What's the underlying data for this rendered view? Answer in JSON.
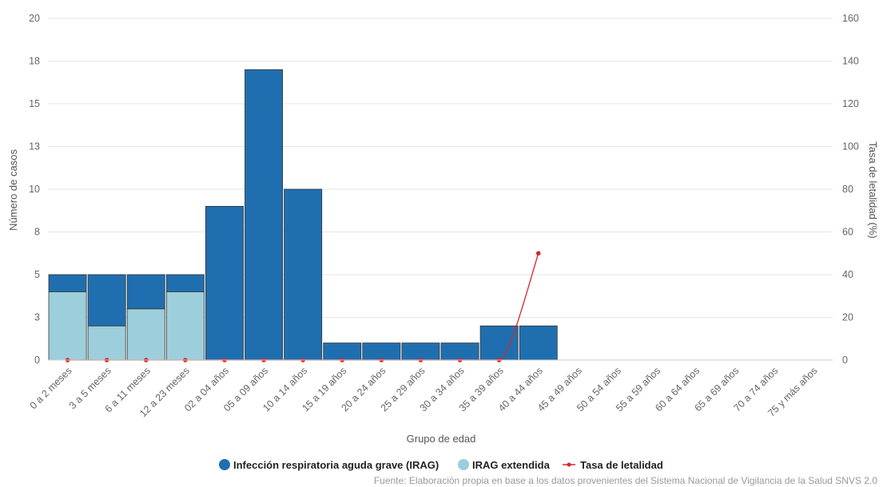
{
  "chart_data": {
    "type": "bar",
    "xlabel": "Grupo de edad",
    "ylabel": "Número de casos",
    "y2label": "Tasa de letalidad (%)",
    "ylim": [
      0,
      20
    ],
    "y2lim": [
      0,
      160
    ],
    "yticks": [
      "0",
      "3",
      "5",
      "8",
      "10",
      "13",
      "15",
      "18",
      "20"
    ],
    "y2ticks": [
      "0",
      "20",
      "40",
      "60",
      "80",
      "100",
      "120",
      "140",
      "160"
    ],
    "grid": true,
    "stacked": true,
    "categories": [
      "0 a 2 meses",
      "3 a 5 meses",
      "6 a 11 meses",
      "12 a 23 meses",
      "02 a 04 años",
      "05 a 09 años",
      "10 a 14 años",
      "15 a 19 años",
      "20 a 24 años",
      "25 a 29 años",
      "30 a 34 años",
      "35 a 39 años",
      "40 a 44 años",
      "45 a 49 años",
      "50 a 54 años",
      "55 a 59 años",
      "60 a 64 años",
      "65 a 69 años",
      "70 a 74 años",
      "75 y más años"
    ],
    "series": [
      {
        "name": "Infección respiratoria aguda grave (IRAG)",
        "color": "#1f6fb0",
        "values": [
          1,
          3,
          2,
          1,
          9,
          17,
          10,
          1,
          1,
          1,
          1,
          2,
          2,
          0,
          0,
          0,
          0,
          0,
          0,
          0
        ]
      },
      {
        "name": "IRAG extendida",
        "color": "#9ccfdb",
        "values": [
          4,
          2,
          3,
          4,
          0,
          0,
          0,
          0,
          0,
          0,
          0,
          0,
          0,
          0,
          0,
          0,
          0,
          0,
          0,
          0
        ]
      },
      {
        "name": "Tasa de letalidad",
        "color": "#d62728",
        "type": "line",
        "axis": "right",
        "values": [
          0,
          0,
          0,
          0,
          0,
          0,
          0,
          0,
          0,
          0,
          0,
          0,
          50,
          null,
          null,
          null,
          null,
          null,
          null,
          null
        ]
      }
    ],
    "legend_position": "bottom",
    "source": "Fuente: Elaboración propia en base a los datos provenientes del Sistema Nacional de Vigilancia de la Salud SNVS 2.0"
  }
}
